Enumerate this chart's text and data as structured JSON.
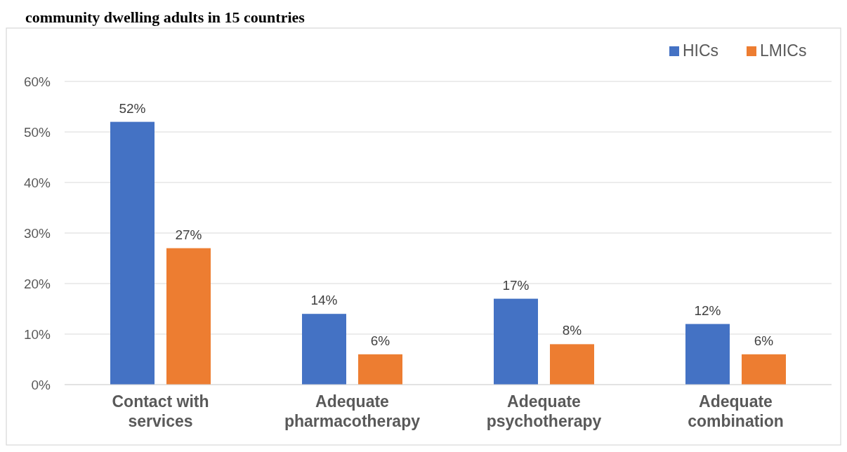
{
  "chart_data": {
    "type": "bar",
    "title": "community dwelling adults in 15 countries",
    "categories": [
      "Contact with services",
      "Adequate pharmacotherapy",
      "Adequate psychotherapy",
      "Adequate combination"
    ],
    "series": [
      {
        "name": "HICs",
        "color": "#4472c4",
        "values": [
          52,
          14,
          17,
          12
        ]
      },
      {
        "name": "LMICs",
        "color": "#ed7d31",
        "values": [
          27,
          6,
          8,
          6
        ]
      }
    ],
    "ylim": [
      0,
      60
    ],
    "yticks": [
      {
        "value": 0,
        "label": "0%"
      },
      {
        "value": 10,
        "label": "10%"
      },
      {
        "value": 20,
        "label": "20%"
      },
      {
        "value": 30,
        "label": "30%"
      },
      {
        "value": 40,
        "label": "40%"
      },
      {
        "value": 50,
        "label": "50%"
      },
      {
        "value": 60,
        "label": "60%"
      }
    ],
    "value_labels": [
      [
        "52%",
        "14%",
        "17%",
        "12%"
      ],
      [
        "27%",
        "6%",
        "8%",
        "6%"
      ]
    ],
    "grid": "y",
    "legend": "top right"
  }
}
